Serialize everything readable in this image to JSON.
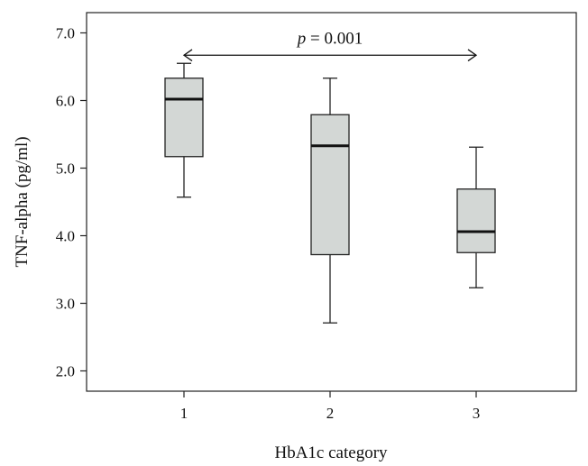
{
  "chart_data": {
    "type": "boxplot",
    "xlabel": "HbA1c category",
    "ylabel": "TNF-alpha (pg/ml)",
    "categories": [
      "1",
      "2",
      "3"
    ],
    "ylim": [
      1.7,
      7.3
    ],
    "yticks": [
      "2.0",
      "3.0",
      "4.0",
      "5.0",
      "6.0",
      "7.0"
    ],
    "boxes": [
      {
        "category": "1",
        "min": 4.57,
        "q1": 5.17,
        "median": 6.02,
        "q3": 6.33,
        "max": 6.55
      },
      {
        "category": "2",
        "min": 2.71,
        "q1": 3.72,
        "median": 5.33,
        "q3": 5.79,
        "max": 6.33
      },
      {
        "category": "3",
        "min": 3.23,
        "q1": 3.75,
        "median": 4.06,
        "q3": 4.69,
        "max": 5.31
      }
    ],
    "annotation": {
      "p_symbol": "p",
      "p_rest": " = 0.001",
      "from": "1",
      "to": "3",
      "y": 6.67
    },
    "grid": false,
    "legend": "none"
  }
}
